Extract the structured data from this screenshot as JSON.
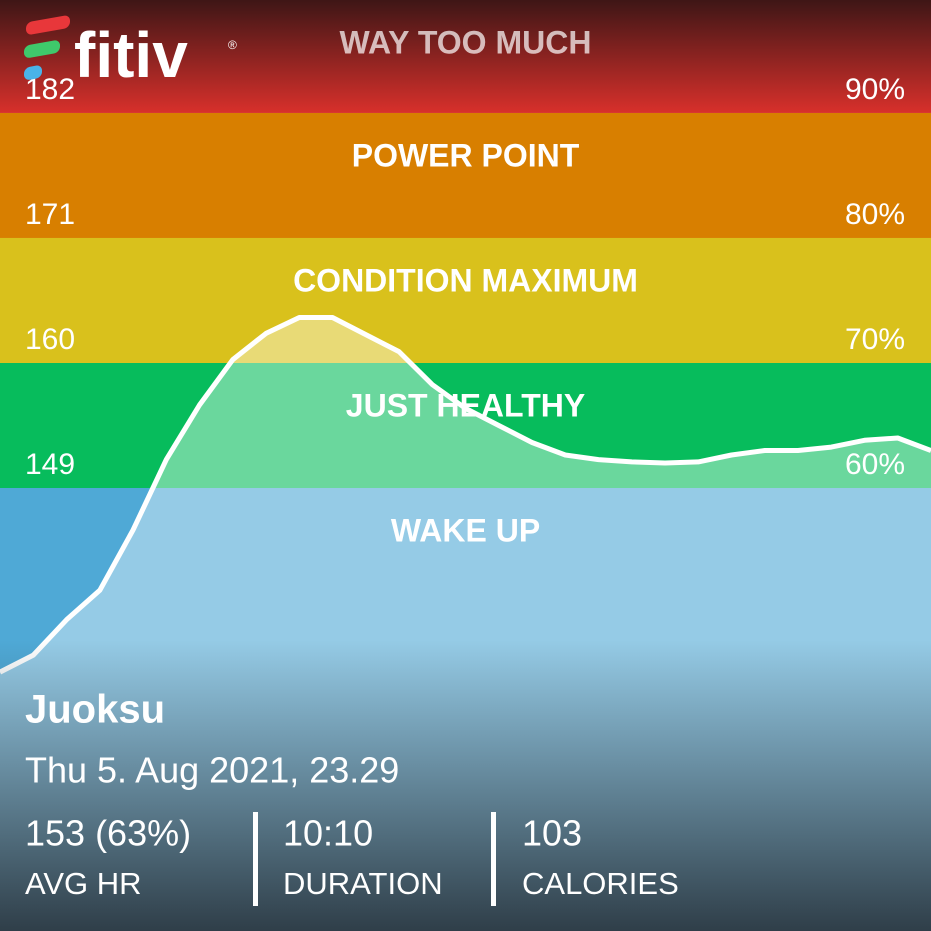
{
  "logo": {
    "text": "fitiv",
    "mark": "®"
  },
  "chart_data": {
    "type": "area",
    "ylim": [
      110.02,
      191.94
    ],
    "yticks": [
      149,
      160,
      171,
      182
    ],
    "y2lim": [
      24.56,
      99.04
    ],
    "y2ticks": [
      {
        "value": 60,
        "label": "60%"
      },
      {
        "value": 70,
        "label": "70%"
      },
      {
        "value": 80,
        "label": "80%"
      },
      {
        "value": 90,
        "label": "90%"
      }
    ],
    "zones": [
      {
        "name": "WAKE UP",
        "color": "#4fa9d6"
      },
      {
        "name": "JUST HEALTHY",
        "color": "#07bc5c"
      },
      {
        "name": "CONDITION MAXIMUM",
        "color": "#d9c11c"
      },
      {
        "name": "POWER POINT",
        "color": "#d87f00"
      },
      {
        "name": "WAY TOO MUCH",
        "color": "#d8302b"
      }
    ],
    "categories": [
      null,
      null,
      null,
      null,
      null,
      null,
      null,
      null,
      null,
      null,
      null,
      null,
      null,
      null,
      null,
      null,
      null,
      null,
      null,
      null,
      null,
      null,
      null,
      null,
      null,
      null,
      null,
      null,
      null
    ],
    "values": [
      132.8,
      134.3,
      137.4,
      140.0,
      145.3,
      151.5,
      156.3,
      160.3,
      162.6,
      164.0,
      164.0,
      162.5,
      161.0,
      158.1,
      156.0,
      154.5,
      153.0,
      151.9,
      151.5,
      151.3,
      151.2,
      151.3,
      151.9,
      152.3,
      152.3,
      152.6,
      153.2,
      153.4,
      152.3
    ],
    "line_color": "#ffffff"
  },
  "workout": {
    "title": "Juoksu",
    "date": "Thu 5. Aug 2021, 23.29",
    "stats": [
      {
        "value": "153 (63%)",
        "label": "AVG HR"
      },
      {
        "value": "10:10",
        "label": "DURATION"
      },
      {
        "value": "103",
        "label": "CALORIES"
      }
    ]
  }
}
